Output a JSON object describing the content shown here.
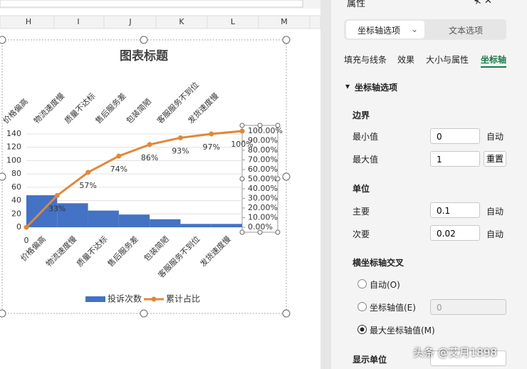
{
  "spreadsheet": {
    "columns": [
      "H",
      "I",
      "J",
      "K",
      "L",
      "M"
    ]
  },
  "chart_data": {
    "title": "图表标题",
    "categories": [
      "价格偏高",
      "物流速度慢",
      "质量不达标",
      "售后服务差",
      "包装简陋",
      "客服服务不到位",
      "发货速度慢"
    ],
    "series": [
      {
        "name": "投诉次数",
        "type": "bar",
        "color": "#4472c4",
        "values": [
          48,
          36,
          25,
          19,
          12,
          5,
          5
        ]
      },
      {
        "name": "累计占比",
        "type": "line",
        "axis": "y2",
        "color": "#e0883a",
        "x": [
          0,
          1,
          2,
          3,
          4,
          5,
          6,
          7
        ],
        "values": [
          0,
          0.33,
          0.57,
          0.74,
          0.86,
          0.93,
          0.97,
          1
        ],
        "value_labels": [
          "0",
          "33%",
          "57%",
          "74%",
          "86%",
          "93%",
          "97%",
          "100%"
        ]
      }
    ],
    "ylim": [
      0,
      140
    ],
    "yticks": [
      0,
      20,
      40,
      60,
      80,
      100,
      120,
      140
    ],
    "y2lim": [
      0,
      1
    ],
    "y2ticks": [
      {
        "value": 0,
        "label": "0.00%"
      },
      {
        "value": 0.1,
        "label": "10.00%"
      },
      {
        "value": 0.2,
        "label": "20.00%"
      },
      {
        "value": 0.3,
        "label": "30.00%"
      },
      {
        "value": 0.4,
        "label": "40.00%"
      },
      {
        "value": 0.5,
        "label": "50.00%"
      },
      {
        "value": 0.6,
        "label": "60.00%"
      },
      {
        "value": 0.7,
        "label": "70.00%"
      },
      {
        "value": 0.8,
        "label": "80.00%"
      },
      {
        "value": 0.9,
        "label": "90.00%"
      },
      {
        "value": 1,
        "label": "100.00%"
      }
    ],
    "grid": true,
    "legend": "bottom"
  },
  "panel": {
    "title": "属性",
    "tabs": [
      "坐标轴选项",
      "文本选项"
    ],
    "subtabs": [
      "填充与线条",
      "效果",
      "大小与属性",
      "坐标轴"
    ],
    "section": "坐标轴选项",
    "bounds": {
      "heading": "边界",
      "rows": [
        {
          "label": "最小值",
          "value": "0",
          "button": "自动"
        },
        {
          "label": "最大值",
          "value": "1",
          "button": "重置"
        }
      ]
    },
    "units": {
      "heading": "单位",
      "rows": [
        {
          "label": "主要",
          "value": "0.1",
          "button": "自动"
        },
        {
          "label": "次要",
          "value": "0.02",
          "button": "自动"
        }
      ]
    },
    "cross": {
      "heading": "横坐标轴交叉",
      "options": [
        "自动(O)",
        "坐标轴值(E)",
        "最大坐标轴值(M)"
      ],
      "axis_value": "0"
    },
    "display_unit": "显示单位"
  },
  "watermark": "头条 @艾月1898"
}
